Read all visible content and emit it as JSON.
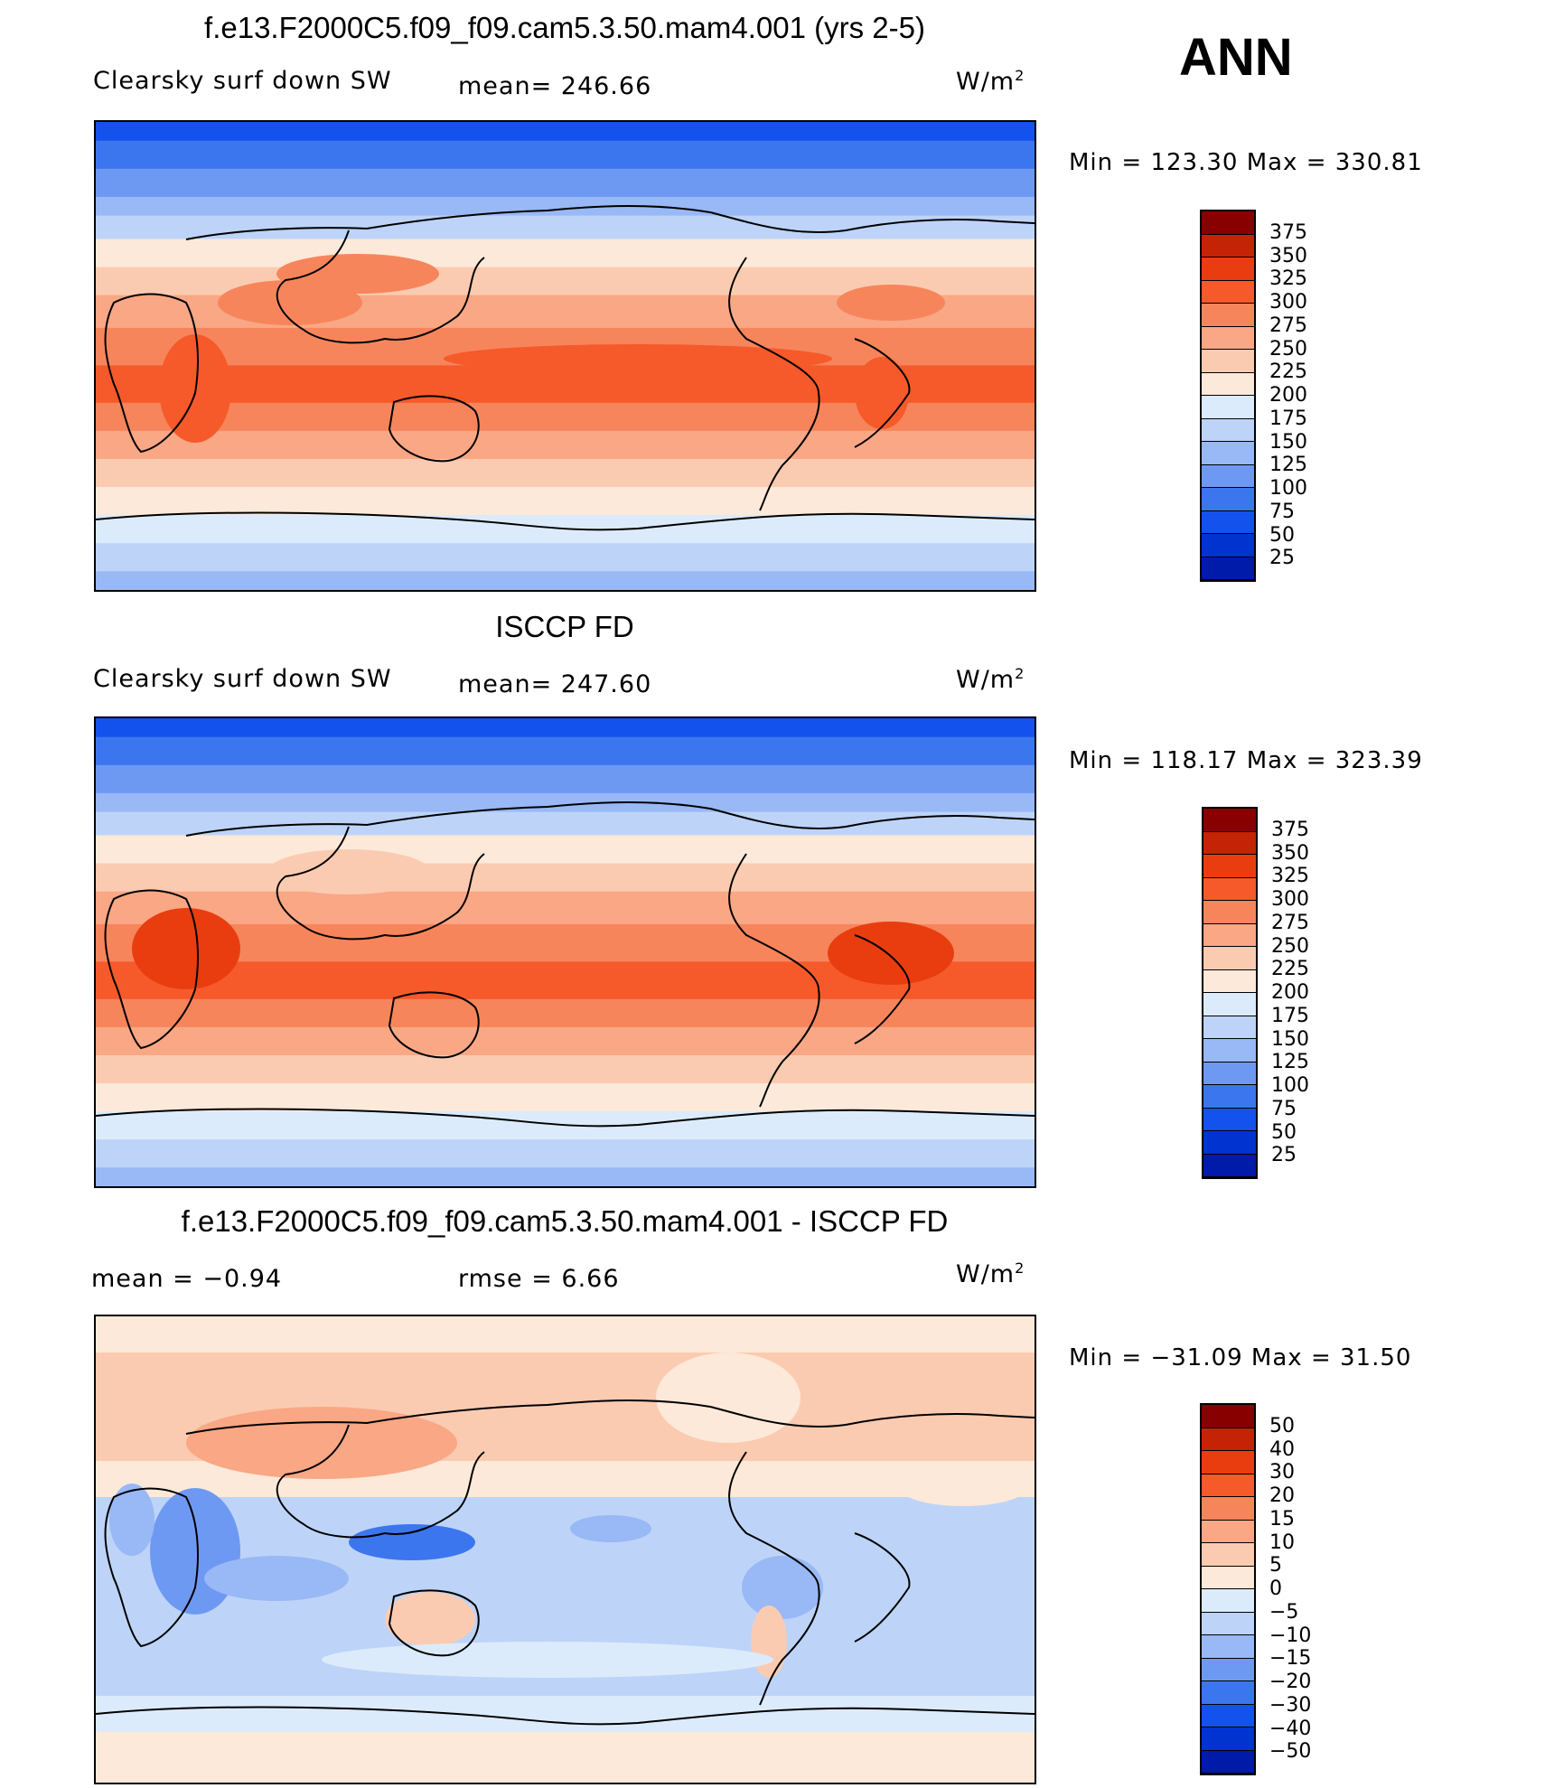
{
  "season": "ANN",
  "colors": {
    "abs_scale": [
      "#000b7b",
      "#001aa9",
      "#0033d0",
      "#1452ee",
      "#3c76ef",
      "#6e99f3",
      "#98b8f6",
      "#bdd4f8",
      "#dcebfb",
      "#fde9d9",
      "#fbcbb1",
      "#f9a785",
      "#f7855c",
      "#f65a2a",
      "#e93d10",
      "#c42306",
      "#880000"
    ],
    "diff_scale": [
      "#000b7b",
      "#001aa9",
      "#0033d0",
      "#1452ee",
      "#3c76ef",
      "#6e99f3",
      "#98b8f6",
      "#bdd4f8",
      "#dcebfb",
      "#fde9d9",
      "#fbcbb1",
      "#f9a785",
      "#f7855c",
      "#f65a2a",
      "#e93d10",
      "#c42306",
      "#880000"
    ]
  },
  "panels": [
    {
      "title": "f.e13.F2000C5.f09_f09.cam5.3.50.mam4.001 (yrs 2-5)",
      "left_label": "Clearsky surf down SW",
      "mid_label": "mean= 246.66",
      "units": "W/m",
      "units_exp": "2",
      "minmax": "Min = 123.30 Max = 330.81",
      "levels": [
        "375",
        "350",
        "325",
        "300",
        "275",
        "250",
        "225",
        "200",
        "175",
        "150",
        "125",
        "100",
        "75",
        "50",
        "25"
      ]
    },
    {
      "title": "ISCCP FD",
      "left_label": "Clearsky surf down SW",
      "mid_label": "mean= 247.60",
      "units": "W/m",
      "units_exp": "2",
      "minmax": "Min = 118.17 Max = 323.39",
      "levels": [
        "375",
        "350",
        "325",
        "300",
        "275",
        "250",
        "225",
        "200",
        "175",
        "150",
        "125",
        "100",
        "75",
        "50",
        "25"
      ]
    },
    {
      "title": "f.e13.F2000C5.f09_f09.cam5.3.50.mam4.001 - ISCCP FD",
      "left_label": "mean =   −0.94",
      "mid_label": "rmse =    6.66",
      "units": "W/m",
      "units_exp": "2",
      "minmax": "Min = −31.09 Max =  31.50",
      "levels": [
        "50",
        "40",
        "30",
        "20",
        "15",
        "10",
        "5",
        "0",
        "−5",
        "−10",
        "−15",
        "−20",
        "−30",
        "−40",
        "−50"
      ]
    }
  ]
}
